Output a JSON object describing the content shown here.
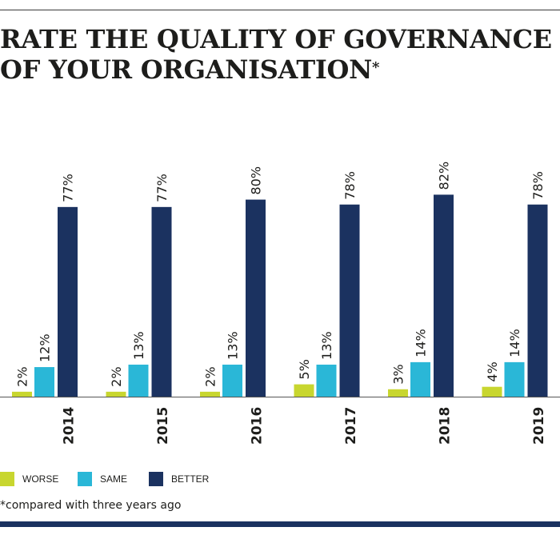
{
  "title": {
    "line1": "RATE THE QUALITY OF GOVERNANCE",
    "line2": "OF YOUR ORGANISATION",
    "marker": "*"
  },
  "colors": {
    "worse": "#c8d62f",
    "same": "#2ab7d7",
    "better": "#1b3260",
    "text": "#1d1d1b"
  },
  "chart_data": {
    "type": "bar",
    "title": "RATE THE QUALITY OF GOVERNANCE OF YOUR ORGANISATION*",
    "xlabel": "",
    "ylabel": "",
    "ylim": [
      0,
      100
    ],
    "grid": false,
    "legend_position": "bottom-left",
    "categories": [
      "2014",
      "2015",
      "2016",
      "2017",
      "2018",
      "2019"
    ],
    "series": [
      {
        "name": "WORSE",
        "key": "worse",
        "values": [
          2,
          2,
          2,
          5,
          3,
          4
        ]
      },
      {
        "name": "SAME",
        "key": "same",
        "values": [
          12,
          13,
          13,
          13,
          14,
          14
        ]
      },
      {
        "name": "BETTER",
        "key": "better",
        "values": [
          77,
          77,
          80,
          78,
          82,
          78
        ]
      }
    ],
    "value_suffix": "%"
  },
  "legend": {
    "worse": "WORSE",
    "same": "SAME",
    "better": "BETTER"
  },
  "footnote": "*compared with three years ago"
}
